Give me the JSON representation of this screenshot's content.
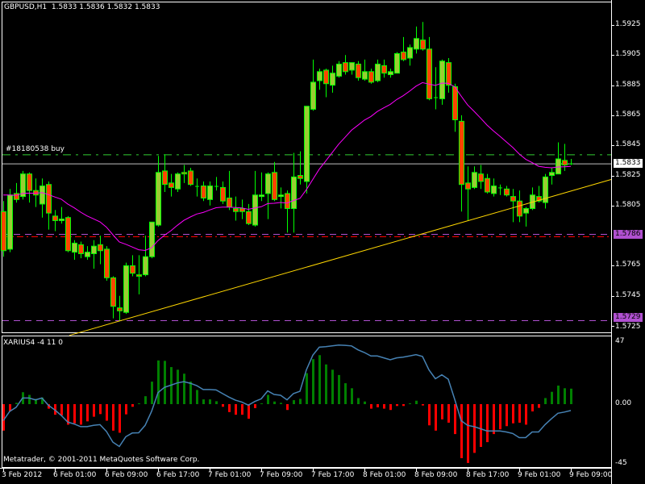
{
  "header": {
    "symbol_timeframe": "GBPUSD,H1",
    "ohlc": "1.5833 1.5836 1.5832 1.5833"
  },
  "order_label": "#18180538 buy",
  "indicator_label": "XARIUS4 -4 11 0",
  "copyright": "Metatrader, © 2001-2011 MetaQuotes Software Corp.",
  "colors": {
    "background": "#000000",
    "bull_body": "#9ACD32",
    "bear_body": "#FF4500",
    "candle_outline": "#00FF00",
    "moving_average": "#FF00FF",
    "trendline": "#FFD700",
    "order_line": "#32CD32",
    "bid_line": "#C0C0C0",
    "level_line": "#B050D0",
    "stop_line": "#FF0000",
    "hist_positive": "#008000",
    "hist_negative": "#FF0000",
    "oscillator_line": "#4682B4"
  },
  "price_axis": {
    "ticks": [
      "1.5925",
      "1.5905",
      "1.5885",
      "1.5865",
      "1.5845",
      "1.5825",
      "1.5805",
      "1.5765",
      "1.5745",
      "1.5725"
    ],
    "min": 1.5725,
    "max": 1.5925
  },
  "price_tags": [
    {
      "value": "1.5833",
      "kind": "bid"
    },
    {
      "value": "1.5786",
      "kind": "level"
    },
    {
      "value": "1.5729",
      "kind": "level"
    }
  ],
  "lines": {
    "order_price": 1.5839,
    "bid_price": 1.5833,
    "levels": [
      1.5786,
      1.5729
    ],
    "stop_price": 1.5785,
    "trendline": [
      {
        "bar": 17,
        "price": 1.5727
      },
      {
        "bar": 94,
        "price": 1.5822
      }
    ]
  },
  "time_axis": [
    "3 Feb 2012",
    "6 Feb 01:00",
    "6 Feb 09:00",
    "6 Feb 17:00",
    "7 Feb 01:00",
    "7 Feb 09:00",
    "7 Feb 17:00",
    "8 Feb 01:00",
    "8 Feb 09:00",
    "8 Feb 17:00",
    "9 Feb 01:00",
    "9 Feb 09:00"
  ],
  "indicator_axis": {
    "max_label": "47",
    "zero_label": "0.00",
    "min_label": "-45",
    "max": 47,
    "min": -45
  },
  "chart_data": {
    "type": "candlestick",
    "candles_ohlc": [
      [
        1.5801,
        1.5808,
        1.5771,
        1.5775
      ],
      [
        1.5776,
        1.5816,
        1.5774,
        1.5812
      ],
      [
        1.5813,
        1.582,
        1.5807,
        1.5809
      ],
      [
        1.5811,
        1.5828,
        1.5809,
        1.5826
      ],
      [
        1.5826,
        1.5827,
        1.5807,
        1.5815
      ],
      [
        1.5815,
        1.5823,
        1.5804,
        1.5812
      ],
      [
        1.5806,
        1.5823,
        1.5797,
        1.5818
      ],
      [
        1.5819,
        1.5821,
        1.5789,
        1.58
      ],
      [
        1.5798,
        1.5802,
        1.5788,
        1.5795
      ],
      [
        1.5795,
        1.5804,
        1.5793,
        1.5796
      ],
      [
        1.5797,
        1.5798,
        1.5774,
        1.5775
      ],
      [
        1.5774,
        1.5782,
        1.5769,
        1.578
      ],
      [
        1.5779,
        1.5781,
        1.577,
        1.5773
      ],
      [
        1.5771,
        1.5778,
        1.5769,
        1.5774
      ],
      [
        1.5773,
        1.5782,
        1.5763,
        1.5778
      ],
      [
        1.5779,
        1.5785,
        1.5766,
        1.5775
      ],
      [
        1.5776,
        1.5778,
        1.5755,
        1.5757
      ],
      [
        1.5757,
        1.5758,
        1.573,
        1.5738
      ],
      [
        1.5737,
        1.5745,
        1.5728,
        1.5735
      ],
      [
        1.5734,
        1.5767,
        1.5733,
        1.5765
      ],
      [
        1.5765,
        1.5772,
        1.5758,
        1.576
      ],
      [
        1.5759,
        1.5772,
        1.5746,
        1.5758
      ],
      [
        1.5759,
        1.5785,
        1.5758,
        1.5771
      ],
      [
        1.5771,
        1.5794,
        1.577,
        1.5794
      ],
      [
        1.5792,
        1.5838,
        1.5791,
        1.5827
      ],
      [
        1.5828,
        1.5839,
        1.5814,
        1.5819
      ],
      [
        1.582,
        1.5826,
        1.5811,
        1.5817
      ],
      [
        1.5816,
        1.5827,
        1.5814,
        1.5826
      ],
      [
        1.5827,
        1.5832,
        1.582,
        1.5826
      ],
      [
        1.5828,
        1.583,
        1.5818,
        1.5819
      ],
      [
        1.5818,
        1.5823,
        1.5811,
        1.5818
      ],
      [
        1.5818,
        1.5821,
        1.5808,
        1.581
      ],
      [
        1.5809,
        1.5821,
        1.5805,
        1.5818
      ],
      [
        1.5818,
        1.5824,
        1.5815,
        1.5818
      ],
      [
        1.5817,
        1.5821,
        1.5806,
        1.5808
      ],
      [
        1.581,
        1.5828,
        1.5802,
        1.5804
      ],
      [
        1.5803,
        1.5811,
        1.5795,
        1.5801
      ],
      [
        1.5803,
        1.5809,
        1.5796,
        1.5801
      ],
      [
        1.5801,
        1.5806,
        1.5792,
        1.5793
      ],
      [
        1.5792,
        1.5828,
        1.5791,
        1.5812
      ],
      [
        1.5811,
        1.5827,
        1.5808,
        1.5812
      ],
      [
        1.5813,
        1.5827,
        1.5796,
        1.5826
      ],
      [
        1.5827,
        1.5834,
        1.5808,
        1.5809
      ],
      [
        1.5811,
        1.5817,
        1.5803,
        1.5812
      ],
      [
        1.5813,
        1.5815,
        1.5787,
        1.5803
      ],
      [
        1.5803,
        1.584,
        1.5787,
        1.5824
      ],
      [
        1.5825,
        1.5841,
        1.5819,
        1.5823
      ],
      [
        1.5821,
        1.5871,
        1.5813,
        1.5871
      ],
      [
        1.5869,
        1.5902,
        1.5868,
        1.5887
      ],
      [
        1.5888,
        1.5896,
        1.5882,
        1.5894
      ],
      [
        1.5895,
        1.5896,
        1.5877,
        1.5886
      ],
      [
        1.5885,
        1.5898,
        1.588,
        1.5893
      ],
      [
        1.5891,
        1.5901,
        1.589,
        1.5899
      ],
      [
        1.59,
        1.5905,
        1.5892,
        1.5894
      ],
      [
        1.5895,
        1.59,
        1.5892,
        1.59
      ],
      [
        1.5899,
        1.5901,
        1.5888,
        1.589
      ],
      [
        1.5889,
        1.5902,
        1.5888,
        1.5894
      ],
      [
        1.5894,
        1.5896,
        1.5886,
        1.5887
      ],
      [
        1.5888,
        1.5902,
        1.5887,
        1.5899
      ],
      [
        1.5898,
        1.5902,
        1.589,
        1.5893
      ],
      [
        1.5892,
        1.5896,
        1.589,
        1.5894
      ],
      [
        1.5893,
        1.5907,
        1.5893,
        1.5906
      ],
      [
        1.5907,
        1.5917,
        1.5901,
        1.5902
      ],
      [
        1.5903,
        1.5912,
        1.5898,
        1.591
      ],
      [
        1.5909,
        1.5924,
        1.5906,
        1.5916
      ],
      [
        1.5915,
        1.5927,
        1.5908,
        1.5909
      ],
      [
        1.5909,
        1.5917,
        1.5875,
        1.5876
      ],
      [
        1.5877,
        1.5897,
        1.5869,
        1.5877
      ],
      [
        1.5876,
        1.5902,
        1.5872,
        1.5901
      ],
      [
        1.59,
        1.5903,
        1.588,
        1.5885
      ],
      [
        1.5884,
        1.5886,
        1.5854,
        1.5862
      ],
      [
        1.5861,
        1.5865,
        1.5801,
        1.5819
      ],
      [
        1.582,
        1.5831,
        1.5795,
        1.5816
      ],
      [
        1.5817,
        1.5831,
        1.5816,
        1.5827
      ],
      [
        1.5826,
        1.5832,
        1.5816,
        1.5821
      ],
      [
        1.5823,
        1.5826,
        1.5813,
        1.5814
      ],
      [
        1.5813,
        1.5823,
        1.5811,
        1.5818
      ],
      [
        1.5817,
        1.5819,
        1.5812,
        1.5817
      ],
      [
        1.5816,
        1.5818,
        1.5811,
        1.5812
      ],
      [
        1.5811,
        1.5816,
        1.5794,
        1.5808
      ],
      [
        1.5808,
        1.5815,
        1.5794,
        1.5798
      ],
      [
        1.58,
        1.5804,
        1.5791,
        1.5803
      ],
      [
        1.5803,
        1.5817,
        1.5802,
        1.5812
      ],
      [
        1.5811,
        1.5818,
        1.5807,
        1.5808
      ],
      [
        1.5807,
        1.5826,
        1.5803,
        1.5824
      ],
      [
        1.5825,
        1.583,
        1.5819,
        1.5827
      ],
      [
        1.5826,
        1.5847,
        1.5826,
        1.5836
      ],
      [
        1.5835,
        1.5846,
        1.5828,
        1.5832
      ],
      [
        1.5833,
        1.5836,
        1.5832,
        1.5833
      ]
    ],
    "indicator_histogram": [
      -20,
      -5.5,
      1,
      9,
      7,
      4,
      5,
      -3.4,
      -8,
      -8.5,
      -15.5,
      -14.5,
      -15.5,
      -13,
      -9.5,
      -7.5,
      -12.5,
      -20,
      -21.6,
      -7.7,
      -2,
      0.6,
      6,
      17,
      33,
      32.7,
      28,
      26,
      23,
      17,
      10.7,
      3.6,
      3.6,
      2.2,
      -2,
      -6,
      -8,
      -8,
      -11,
      -3,
      0.6,
      7,
      2,
      1,
      -4.4,
      3,
      4,
      23.4,
      34,
      37,
      30,
      26,
      22,
      15.8,
      12,
      4.6,
      2,
      -3.4,
      -2.4,
      -3.4,
      -4.4,
      -1.4,
      -1.4,
      0.6,
      2.6,
      -1,
      -16,
      -20,
      -11.5,
      -14,
      -22.6,
      -40.8,
      -44.4,
      -36.8,
      -32.3,
      -28.7,
      -22.6,
      -19,
      -16.6,
      -14.5,
      -14,
      -15.5,
      -5.5,
      -2.8,
      4.6,
      9.3,
      14,
      12,
      11.7
    ],
    "indicator_line": [
      -12.5,
      -5.5,
      -2.4,
      4.6,
      4.6,
      3.2,
      4.6,
      -0.8,
      -4.4,
      -8.5,
      -13.5,
      -15,
      -17,
      -17,
      -16,
      -15.5,
      -20.6,
      -28.7,
      -32,
      -24.6,
      -21.8,
      -21.6,
      -16,
      -5.5,
      8.7,
      12.7,
      14.3,
      16,
      17,
      15.8,
      14,
      11,
      11,
      10.7,
      8,
      5.3,
      3,
      1.6,
      -0.8,
      2,
      4,
      10,
      7.3,
      6.7,
      3.2,
      8,
      9.7,
      25.9,
      37,
      43,
      43.4,
      44,
      44.6,
      44.4,
      44,
      41,
      39,
      36.4,
      36.4,
      35,
      33.5,
      35,
      35.5,
      36.4,
      37.4,
      36,
      25.9,
      19.2,
      22.2,
      18.8,
      3.6,
      -12.5,
      -16,
      -17,
      -18.6,
      -20.2,
      -20.2,
      -20.2,
      -21,
      -22.2,
      -25.3,
      -25.3,
      -21,
      -21,
      -15.5,
      -11,
      -6.9,
      -6,
      -4.8
    ]
  }
}
